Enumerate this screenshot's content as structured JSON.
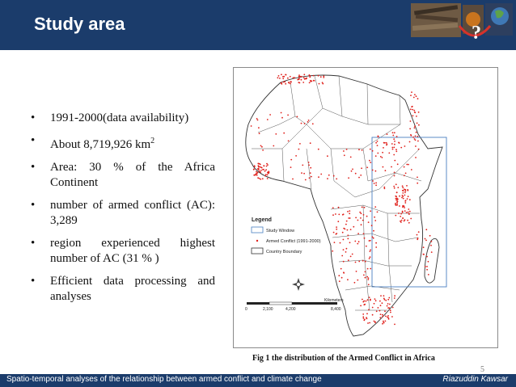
{
  "header": {
    "title": "Study area",
    "question_mark": "?"
  },
  "bullets": [
    {
      "text": "1991-2000(data availability)"
    },
    {
      "text": "About 8,719,926 km",
      "sup": "2"
    },
    {
      "text": "Area: 30 % of the Africa Continent"
    },
    {
      "text": "number of armed conflict (AC): 3,289"
    },
    {
      "text": "region experienced highest number of AC (31 % )"
    },
    {
      "text": "Efficient data processing and analyses"
    }
  ],
  "bullet_symbol": "•",
  "map": {
    "legend": {
      "title": "Legend",
      "items": [
        "Study Window",
        "Armed Conflict (1991-2000)",
        "Country Boundary"
      ]
    },
    "scale": {
      "unit": "Kilometers",
      "ticks": [
        "0",
        "2,100",
        "4,200",
        "8,400"
      ]
    },
    "colors": {
      "conflict": "#e0201b",
      "study_window": "#4a7fc1",
      "boundary": "#333333"
    }
  },
  "caption": "Fig 1  the distribution of the Armed Conflict in Africa",
  "page_number": "5",
  "footer": {
    "left": "Spatio-temporal analyses of the relationship between armed conflict and climate change",
    "right": "Riazuddin Kawsar"
  },
  "colors": {
    "header_bg": "#1b3c6b",
    "text": "#111111"
  }
}
